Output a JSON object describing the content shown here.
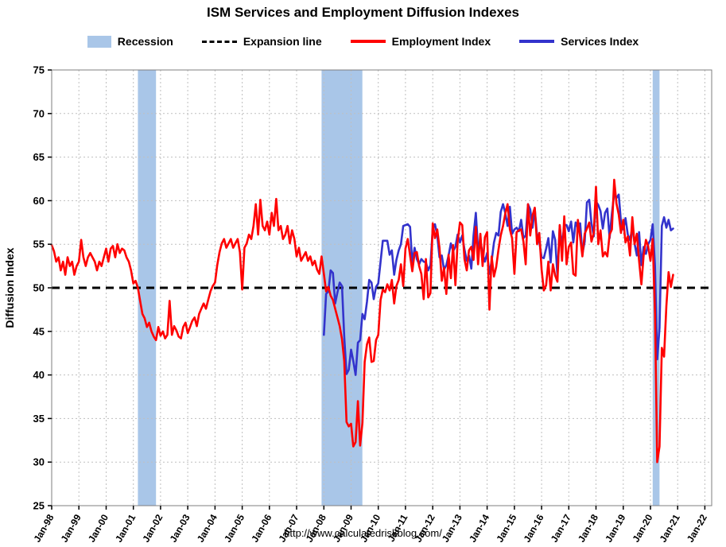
{
  "page": {
    "title": "ISM Services and Employment Diffusion Indexes",
    "footer_url": "http://www.calculatedriskblog.com/"
  },
  "legend": {
    "items": [
      {
        "label": "Recession",
        "swatch": "band",
        "color": "#A9C6E8"
      },
      {
        "label": "Expansion line",
        "swatch": "dash",
        "color": "#000000"
      },
      {
        "label": "Employment Index",
        "swatch": "line",
        "color": "#FF0000"
      },
      {
        "label": "Services Index",
        "swatch": "line",
        "color": "#3333CC"
      }
    ]
  },
  "chart_data": {
    "type": "line",
    "title": "ISM Services and Employment Diffusion Indexes",
    "xlabel": "",
    "ylabel": "Diffusion Index",
    "ylim": [
      25,
      75
    ],
    "y_ticks": [
      25,
      30,
      35,
      40,
      45,
      50,
      55,
      60,
      65,
      70,
      75
    ],
    "x_ticks": [
      "Jan-98",
      "Jan-99",
      "Jan-00",
      "Jan-01",
      "Jan-02",
      "Jan-03",
      "Jan-04",
      "Jan-05",
      "Jan-06",
      "Jan-07",
      "Jan-08",
      "Jan-09",
      "Jan-10",
      "Jan-11",
      "Jan-12",
      "Jan-13",
      "Jan-14",
      "Jan-15",
      "Jan-16",
      "Jan-17",
      "Jan-18",
      "Jan-19",
      "Jan-20",
      "Jan-21",
      "Jan-22"
    ],
    "x_tick_interval_months": 12,
    "x_domain_start": "1998-01",
    "x_domain_end": "2022-04",
    "grid": true,
    "grid_color": "#bfbfbf",
    "expansion_line_value": 50,
    "recession_color": "#A9C6E8",
    "recessions": [
      {
        "start": "2001-03",
        "end": "2001-11"
      },
      {
        "start": "2007-12",
        "end": "2009-06"
      },
      {
        "start": "2020-02",
        "end": "2020-05"
      }
    ],
    "series": [
      {
        "name": "Services Index",
        "color": "#3333CC",
        "start": "2008-01",
        "values": [
          44.6,
          49.3,
          49.6,
          52.0,
          51.7,
          48.2,
          49.5,
          50.6,
          50.2,
          44.4,
          40.1,
          40.6,
          42.9,
          41.6,
          40.0,
          43.7,
          44.0,
          47.0,
          46.4,
          48.4,
          50.9,
          50.6,
          48.7,
          50.1,
          50.5,
          53.0,
          55.4,
          55.4,
          55.4,
          53.8,
          54.3,
          51.5,
          53.2,
          54.3,
          55.0,
          57.1,
          57.2,
          57.3,
          57.0,
          52.8,
          54.6,
          53.3,
          52.7,
          53.3,
          53.0,
          52.9,
          52.0,
          52.6,
          56.8,
          57.3,
          56.0,
          53.5,
          53.7,
          52.1,
          52.6,
          53.7,
          55.1,
          54.2,
          54.7,
          56.1,
          55.2,
          56.0,
          54.4,
          53.1,
          53.7,
          52.2,
          56.0,
          58.6,
          54.4,
          55.4,
          53.9,
          53.0,
          54.0,
          51.6,
          53.1,
          55.2,
          56.3,
          56.0,
          58.7,
          59.6,
          58.6,
          57.1,
          59.3,
          56.2,
          56.7,
          56.9,
          56.5,
          57.8,
          55.7,
          56.0,
          59.6,
          59.0,
          56.9,
          59.1,
          55.9,
          55.3,
          53.5,
          53.4,
          54.5,
          55.7,
          52.9,
          56.5,
          55.5,
          51.4,
          57.1,
          54.8,
          57.2,
          57.2,
          56.5,
          57.6,
          55.2,
          57.5,
          56.9,
          57.4,
          53.9,
          55.3,
          59.8,
          60.1,
          57.4,
          55.9,
          59.9,
          59.5,
          58.8,
          56.8,
          58.6,
          59.1,
          55.7,
          58.5,
          60.8,
          60.3,
          60.7,
          57.6,
          56.7,
          58.0,
          56.1,
          55.5,
          56.9,
          55.1,
          53.7,
          56.4,
          52.6,
          54.7,
          53.9,
          55.0,
          55.5,
          57.3,
          52.5,
          41.8,
          45.4,
          57.1,
          58.1,
          56.9,
          57.8,
          56.6,
          56.8
        ]
      },
      {
        "name": "Employment Index",
        "color": "#FF0000",
        "start": "1998-01",
        "values": [
          54.9,
          54.2,
          53.0,
          53.5,
          52.0,
          53.0,
          51.5,
          53.5,
          52.5,
          53.0,
          51.5,
          52.5,
          53.0,
          55.5,
          53.5,
          52.5,
          53.5,
          54.0,
          53.5,
          53.0,
          52.0,
          53.0,
          52.5,
          53.5,
          54.5,
          53.0,
          54.5,
          54.8,
          53.5,
          55.0,
          54.0,
          54.5,
          54.3,
          53.5,
          53.0,
          52.0,
          50.5,
          50.8,
          50.0,
          48.5,
          47.0,
          46.5,
          45.5,
          46.0,
          45.0,
          44.4,
          44.0,
          45.5,
          44.5,
          45.0,
          44.2,
          44.6,
          48.5,
          44.6,
          45.6,
          45.1,
          44.4,
          44.2,
          45.5,
          46.0,
          44.8,
          45.5,
          46.2,
          46.6,
          45.6,
          47.0,
          47.6,
          48.2,
          47.6,
          48.6,
          49.6,
          50.2,
          50.6,
          52.6,
          54.1,
          55.1,
          55.6,
          54.6,
          55.1,
          55.6,
          54.6,
          55.1,
          55.6,
          54.1,
          49.8,
          54.6,
          55.1,
          56.1,
          55.6,
          57.1,
          59.6,
          56.1,
          60.1,
          57.1,
          56.6,
          57.6,
          56.1,
          58.6,
          57.1,
          60.2,
          56.6,
          57.1,
          55.6,
          56.1,
          57.1,
          55.1,
          56.6,
          55.6,
          53.6,
          54.6,
          53.1,
          53.6,
          54.1,
          53.1,
          53.6,
          52.6,
          53.1,
          52.1,
          51.6,
          53.6,
          51.6,
          49.6,
          50.1,
          49.1,
          48.6,
          47.6,
          46.6,
          45.6,
          44.1,
          41.6,
          34.6,
          34.1,
          34.4,
          31.8,
          32.3,
          37.0,
          31.9,
          34.5,
          41.5,
          43.5,
          44.3,
          41.5,
          41.6,
          44.0,
          44.6,
          48.6,
          49.8,
          49.5,
          50.4,
          49.7,
          50.9,
          48.2,
          50.2,
          50.9,
          52.7,
          50.2,
          54.5,
          55.6,
          53.7,
          51.9,
          54.0,
          54.1,
          52.5,
          51.6,
          48.7,
          53.3,
          48.9,
          49.4,
          57.4,
          55.7,
          56.7,
          54.6,
          50.8,
          52.3,
          49.3,
          53.8,
          51.1,
          54.9,
          50.3,
          55.3,
          57.5,
          57.2,
          53.3,
          52.0,
          54.3,
          54.7,
          53.2,
          57.0,
          52.7,
          56.2,
          52.5,
          55.8,
          56.4,
          47.5,
          53.6,
          51.3,
          52.4,
          54.4,
          56.0,
          57.1,
          58.5,
          59.6,
          56.7,
          55.7,
          51.6,
          56.4,
          56.6,
          56.7,
          55.3,
          52.7,
          59.6,
          56.0,
          58.3,
          59.2,
          55.0,
          56.3,
          52.1,
          49.7,
          50.3,
          53.0,
          49.7,
          52.7,
          51.4,
          50.7,
          57.2,
          53.1,
          58.2,
          52.7,
          54.7,
          55.2,
          51.6,
          51.4,
          57.8,
          55.8,
          53.6,
          56.2,
          56.8,
          57.5,
          55.3,
          56.3,
          61.6,
          55.0,
          56.6,
          53.6,
          54.1,
          53.6,
          56.1,
          56.7,
          62.4,
          59.7,
          58.4,
          56.3,
          57.8,
          55.2,
          55.9,
          53.7,
          58.1,
          55.0,
          56.2,
          53.1,
          50.4,
          53.7,
          55.5,
          54.8,
          53.1,
          55.6,
          47.0,
          30.0,
          31.8,
          43.1,
          42.1,
          47.9,
          51.8,
          50.1,
          51.5
        ]
      }
    ]
  }
}
